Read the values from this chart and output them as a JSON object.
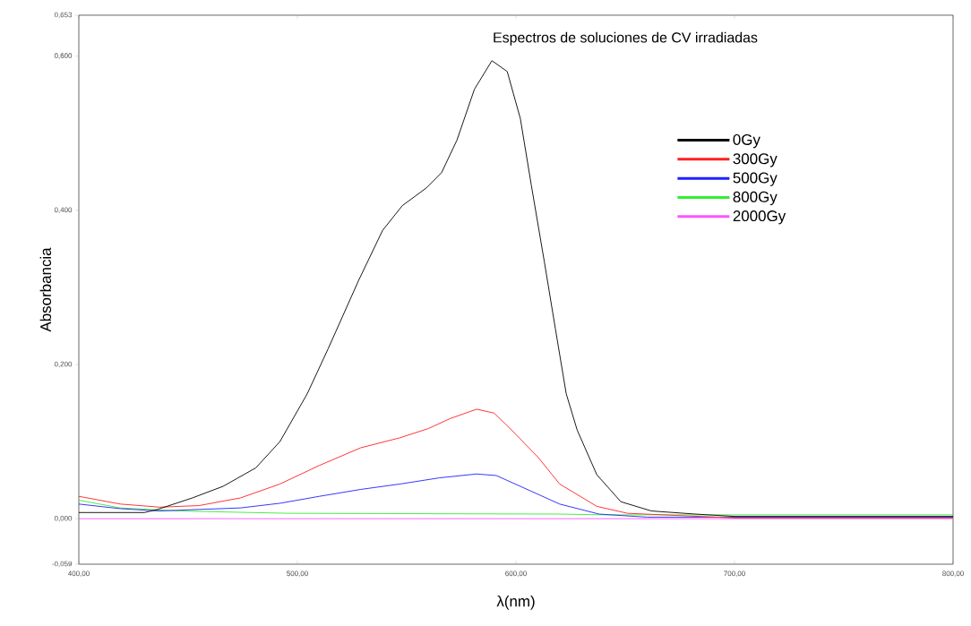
{
  "chart_data": {
    "type": "line",
    "title": "Espectros de soluciones de CV irradiadas",
    "xlabel": "λ(nm)",
    "ylabel": "Absorbancia",
    "xlim": [
      400,
      800
    ],
    "ylim": [
      -0.059,
      0.653
    ],
    "xticks": [
      {
        "value": 400,
        "label": "400,00"
      },
      {
        "value": 500,
        "label": "500,00"
      },
      {
        "value": 600,
        "label": "600,00"
      },
      {
        "value": 700,
        "label": "700,00"
      },
      {
        "value": 800,
        "label": "800,00"
      }
    ],
    "yticks": [
      {
        "value": -0.059,
        "label": "-0,059"
      },
      {
        "value": 0,
        "label": "0,000"
      },
      {
        "value": 0.2,
        "label": "0,200"
      },
      {
        "value": 0.4,
        "label": "0,400"
      },
      {
        "value": 0.6,
        "label": "0,600"
      },
      {
        "value": 0.653,
        "label": "0,653"
      }
    ],
    "legend": "right",
    "grid": false,
    "series": [
      {
        "name": "0Gy",
        "color": "#000000",
        "x": [
          400,
          430,
          436,
          452,
          466,
          481,
          492,
          504.5,
          514,
          528,
          539,
          548,
          559,
          566,
          573,
          581,
          589,
          596,
          602,
          607,
          613,
          618,
          623,
          628,
          637,
          648,
          662,
          682,
          700,
          750,
          800
        ],
        "values": [
          0.008,
          0.008,
          0.012,
          0.027,
          0.042,
          0.066,
          0.1,
          0.162,
          0.22,
          0.309,
          0.374,
          0.406,
          0.429,
          0.449,
          0.491,
          0.557,
          0.594,
          0.58,
          0.519,
          0.433,
          0.333,
          0.247,
          0.162,
          0.115,
          0.057,
          0.022,
          0.01,
          0.006,
          0.003,
          0.003,
          0.003
        ]
      },
      {
        "name": "300Gy",
        "color": "#ff2020",
        "x": [
          400,
          419,
          437,
          455,
          474,
          492,
          510,
          529,
          547,
          560,
          570,
          582,
          590,
          598,
          610,
          620,
          637,
          651,
          700,
          800
        ],
        "values": [
          0.029,
          0.019,
          0.015,
          0.017,
          0.027,
          0.045,
          0.069,
          0.092,
          0.105,
          0.117,
          0.13,
          0.142,
          0.137,
          0.115,
          0.08,
          0.045,
          0.016,
          0.007,
          0.001,
          0.001
        ]
      },
      {
        "name": "500Gy",
        "color": "#2020ff",
        "x": [
          400,
          419,
          437,
          455,
          474,
          492,
          510,
          529,
          547,
          565,
          582,
          591,
          602,
          620,
          638,
          660,
          800
        ],
        "values": [
          0.019,
          0.013,
          0.01,
          0.012,
          0.014,
          0.02,
          0.029,
          0.038,
          0.045,
          0.053,
          0.058,
          0.056,
          0.042,
          0.019,
          0.006,
          0.002,
          0.002
        ]
      },
      {
        "name": "800Gy",
        "color": "#33ee33",
        "x": [
          400,
          419,
          446,
          496,
          620,
          640,
          800
        ],
        "values": [
          0.024,
          0.014,
          0.01,
          0.007,
          0.006,
          0.005,
          0.005
        ]
      },
      {
        "name": "2000Gy",
        "color": "#ff55ff",
        "x": [
          400,
          600,
          800
        ],
        "values": [
          0,
          0,
          0
        ]
      }
    ]
  }
}
